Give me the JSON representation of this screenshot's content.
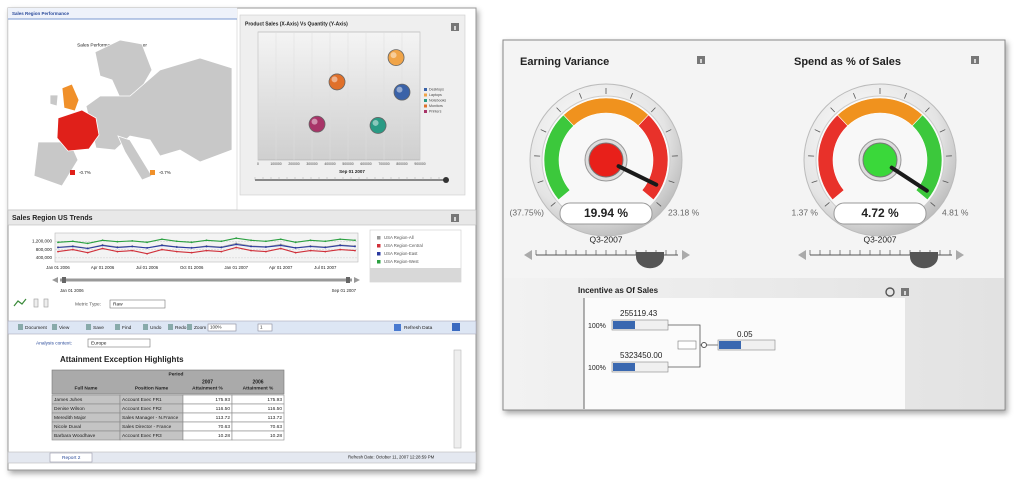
{
  "left": {
    "map_panel": {
      "title": "Sales Region Performance",
      "subtitle": "Sales Performance Prior Quarter",
      "legend": [
        "-0.7%",
        "-0.7%"
      ],
      "legend_colors": [
        "#e0201a",
        "#f0902a"
      ]
    },
    "trends_title": "Sales Region US Trends",
    "metric": {
      "label": "Metric Type:",
      "value": "Raw"
    },
    "toolbar": {
      "items": [
        "Document",
        "View",
        "Save",
        "Find",
        "Undo",
        "Redo",
        "Zoom"
      ],
      "zoom": "100%",
      "page": "1",
      "refresh": "Refresh Data"
    },
    "context": {
      "label": "Analysis context:",
      "value": "Europe"
    },
    "table": {
      "title": "Attainment Exception Highlights",
      "period": "Period",
      "years": [
        "2007",
        "2006"
      ],
      "headers": [
        "Full Name",
        "Position Name",
        "Attainment %",
        "Attainment %"
      ],
      "rows": [
        [
          "James Juhes",
          "Account Exec FR1",
          "175.93",
          "175.93"
        ],
        [
          "Denise Wilson",
          "Account Exec FR2",
          "116.50",
          "116.50"
        ],
        [
          "Meredith Major",
          "Sales Manager - N.France",
          "113.72",
          "113.72"
        ],
        [
          "Nicole Duval",
          "Sales Director - France",
          "70.63",
          "70.63"
        ],
        [
          "Barbara Woodhave",
          "Account Exec FR3",
          "10.28",
          "10.28"
        ]
      ]
    },
    "footer": {
      "tab": "Report 2",
      "refresh_date": "Refresh Date: October 11, 2007 12:28:59 PM"
    }
  },
  "right": {
    "incentive": {
      "title": "Incentive as Of Sales",
      "nodes": [
        {
          "value": "255119.43",
          "percent": "100%"
        },
        {
          "value": "5323450.00",
          "percent": "100%"
        },
        {
          "value": "0.05"
        }
      ]
    }
  },
  "chart_data": [
    {
      "type": "scatter",
      "title": "Product Sales (X-Axis) Vs Quantity (Y-Axis)",
      "date_label": "Sep 01 2007",
      "xlim": [
        0,
        900000
      ],
      "xticks": [
        0,
        100000,
        200000,
        300000,
        400000,
        500000,
        600000,
        700000,
        800000,
        900000
      ],
      "ylim": [
        0,
        100
      ],
      "series": [
        {
          "name": "Desktops",
          "color": "#3a62a8",
          "x": [
            800000
          ],
          "values": [
            53
          ]
        },
        {
          "name": "Laptops",
          "color": "#f0a448",
          "x": [
            767000
          ],
          "values": [
            80
          ]
        },
        {
          "name": "Notebooks",
          "color": "#2a9a84",
          "x": [
            667000
          ],
          "values": [
            27
          ]
        },
        {
          "name": "Monitors",
          "color": "#e0702a",
          "x": [
            439000
          ],
          "values": [
            61
          ]
        },
        {
          "name": "Printers",
          "color": "#a83468",
          "x": [
            328000
          ],
          "values": [
            28
          ]
        }
      ]
    },
    {
      "type": "line",
      "categories": [
        "Jan 01 2006",
        null,
        null,
        "Apr 01 2006",
        null,
        null,
        "Jul 01 2006",
        null,
        null,
        "Oct 01 2006",
        null,
        null,
        "Jan 01 2007",
        null,
        null,
        "Apr 01 2007",
        null,
        null,
        "Jul 01 2007",
        null,
        null
      ],
      "range_labels": [
        "Jan 01 2006",
        "Sep 01 2007"
      ],
      "ylim": [
        200000,
        1600000
      ],
      "yticks": [
        {
          "value": 400000,
          "label": "400,000"
        },
        {
          "value": 800000,
          "label": "800,000"
        },
        {
          "value": 1200000,
          "label": "1,200,000"
        }
      ],
      "series": [
        {
          "name": "USA Region-All",
          "color": "#9a9a9a",
          "values": [
            920000,
            980000,
            870000,
            1030000,
            930000,
            970000,
            880000,
            1030000,
            940000,
            890000,
            980000,
            930000,
            1100000,
            980000,
            940000,
            1050000,
            890000,
            980000,
            930000,
            1030000,
            980000
          ]
        },
        {
          "name": "USA Region-Central",
          "color": "#d0303a",
          "values": [
            700000,
            800000,
            650000,
            850000,
            700000,
            750000,
            600000,
            800000,
            700000,
            650000,
            750000,
            700000,
            900000,
            750000,
            700000,
            850000,
            650000,
            750000,
            700000,
            800000,
            750000
          ]
        },
        {
          "name": "USA Region-East",
          "color": "#2a3aa0",
          "values": [
            900000,
            950000,
            850000,
            1000000,
            900000,
            950000,
            880000,
            1000000,
            920000,
            880000,
            950000,
            900000,
            1050000,
            950000,
            920000,
            1000000,
            880000,
            950000,
            900000,
            1000000,
            950000
          ]
        },
        {
          "name": "USA Region-West",
          "color": "#2aa040",
          "values": [
            1150000,
            1200000,
            1100000,
            1250000,
            1180000,
            1220000,
            1150000,
            1300000,
            1200000,
            1150000,
            1250000,
            1200000,
            1350000,
            1250000,
            1200000,
            1300000,
            1150000,
            1250000,
            1200000,
            1300000,
            1250000
          ]
        }
      ]
    },
    {
      "type": "gauge",
      "title": "Earning Variance",
      "value": 19.94,
      "value_label": "19.94 %",
      "xlabel": "Q3-2007",
      "ylim": [
        -37.75,
        23.18
      ],
      "yticks": [
        {
          "value": -37.75,
          "label": "(37.75%)"
        },
        {
          "value": 23.18,
          "label": "23.18 %"
        }
      ],
      "zone_colors": [
        "#3cc83c",
        "#f0921e",
        "#e8312a"
      ],
      "center_color": "#e8201a"
    },
    {
      "type": "gauge",
      "title": "Spend as % of Sales",
      "value": 4.72,
      "value_label": "4.72 %",
      "xlabel": "Q3-2007",
      "ylim": [
        1.37,
        4.81
      ],
      "yticks": [
        {
          "value": 1.37,
          "label": "1.37 %"
        },
        {
          "value": 4.81,
          "label": "4.81 %"
        }
      ],
      "zone_colors": [
        "#e8312a",
        "#f0921e",
        "#3cc83c"
      ],
      "center_color": "#3ad83a"
    }
  ]
}
